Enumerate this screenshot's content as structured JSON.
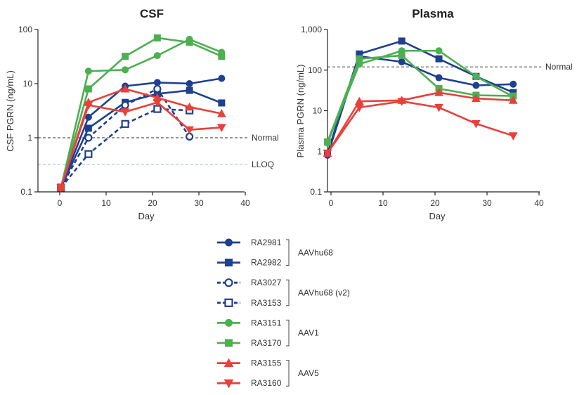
{
  "chart_data": [
    {
      "type": "line",
      "title": "CSF",
      "xlabel": "Day",
      "ylabel": "CSF PGRN (ng/mL)",
      "yscale": "log",
      "xlim": [
        -5,
        40
      ],
      "ylim": [
        0.1,
        100
      ],
      "xticks": [
        "0",
        "10",
        "20",
        "30",
        "40"
      ],
      "yticks": [
        "0.1",
        "1",
        "10",
        "100"
      ],
      "reference_lines": [
        {
          "label": "Normal",
          "y": 1.0,
          "color": "#555555"
        },
        {
          "label": "LLOQ",
          "y": 0.32,
          "color": "#b8c8d0"
        }
      ],
      "series": [
        {
          "name": "RA2981",
          "x": [
            0,
            6,
            14,
            21,
            28,
            35
          ],
          "y": [
            0.12,
            2.4,
            9.0,
            10.5,
            10.0,
            12.5
          ]
        },
        {
          "name": "RA2982",
          "x": [
            0,
            6,
            14,
            21,
            28,
            35
          ],
          "y": [
            0.12,
            1.5,
            4.5,
            6.5,
            7.5,
            4.4
          ]
        },
        {
          "name": "RA3027",
          "x": [
            0,
            6,
            14,
            21,
            28
          ],
          "y": [
            0.12,
            1.0,
            4.0,
            8.0,
            1.05
          ]
        },
        {
          "name": "RA3153",
          "x": [
            0,
            6,
            14,
            21,
            28
          ],
          "y": [
            0.12,
            0.5,
            1.8,
            3.4,
            3.2
          ]
        },
        {
          "name": "RA3151",
          "x": [
            0,
            6,
            14,
            21,
            28,
            35
          ],
          "y": [
            0.12,
            17.0,
            18.0,
            33.0,
            66.0,
            38.0
          ]
        },
        {
          "name": "RA3170",
          "x": [
            0,
            6,
            14,
            21,
            28,
            35
          ],
          "y": [
            0.12,
            8.0,
            32.0,
            70.0,
            58.0,
            32.0
          ]
        },
        {
          "name": "RA3155",
          "x": [
            0,
            6,
            14,
            21,
            28,
            35
          ],
          "y": [
            0.12,
            4.5,
            8.0,
            5.5,
            3.7,
            2.8
          ]
        },
        {
          "name": "RA3160",
          "x": [
            0,
            6,
            14,
            21,
            28,
            35
          ],
          "y": [
            0.12,
            4.0,
            3.0,
            4.5,
            1.4,
            1.55
          ]
        }
      ]
    },
    {
      "type": "line",
      "title": "Plasma",
      "xlabel": "Day",
      "ylabel": "Plasma PGRN (ng/mL)",
      "yscale": "log",
      "xlim": [
        0,
        40
      ],
      "ylim": [
        0.1,
        1000
      ],
      "xticks": [
        "0",
        "10",
        "20",
        "30",
        "40"
      ],
      "yticks": [
        "0.1",
        "1",
        "10",
        "100",
        "1,000"
      ],
      "reference_lines": [
        {
          "label": "Normal",
          "y": 120,
          "color": "#555555"
        }
      ],
      "series": [
        {
          "name": "RA2981",
          "x": [
            0,
            6,
            14,
            21,
            28,
            35
          ],
          "y": [
            0.8,
            220,
            160,
            65,
            42,
            45
          ]
        },
        {
          "name": "RA2982",
          "x": [
            0,
            6,
            14,
            21,
            28,
            35
          ],
          "y": [
            0.9,
            250,
            520,
            190,
            70,
            28
          ]
        },
        {
          "name": "RA3151",
          "x": [
            0,
            6,
            14,
            21,
            28,
            35
          ],
          "y": [
            1.6,
            140,
            300,
            300,
            70,
            22
          ]
        },
        {
          "name": "RA3170",
          "x": [
            0,
            6,
            14,
            21,
            28,
            35
          ],
          "y": [
            1.7,
            190,
            230,
            35,
            24,
            23
          ]
        },
        {
          "name": "RA3155",
          "x": [
            0,
            6,
            14,
            21,
            28,
            35
          ],
          "y": [
            0.9,
            17,
            18,
            28,
            20,
            18
          ]
        },
        {
          "name": "RA3160",
          "x": [
            0,
            6,
            14,
            21,
            28,
            35
          ],
          "y": [
            0.9,
            12,
            17,
            12,
            4.8,
            2.4
          ]
        }
      ]
    }
  ],
  "legend": {
    "entries": [
      {
        "name": "RA2981",
        "color": "#1f3f8f",
        "marker": "circle",
        "filled": true,
        "dashed": false
      },
      {
        "name": "RA2982",
        "color": "#1f3f8f",
        "marker": "square",
        "filled": true,
        "dashed": false
      },
      {
        "name": "RA3027",
        "color": "#1f3f8f",
        "marker": "circle",
        "filled": false,
        "dashed": true
      },
      {
        "name": "RA3153",
        "color": "#1f3f8f",
        "marker": "square",
        "filled": false,
        "dashed": true
      },
      {
        "name": "RA3151",
        "color": "#4caf50",
        "marker": "circle",
        "filled": true,
        "dashed": false
      },
      {
        "name": "RA3170",
        "color": "#4caf50",
        "marker": "square",
        "filled": true,
        "dashed": false
      },
      {
        "name": "RA3155",
        "color": "#e8403a",
        "marker": "triangle-up",
        "filled": true,
        "dashed": false
      },
      {
        "name": "RA3160",
        "color": "#e8403a",
        "marker": "triangle-down",
        "filled": true,
        "dashed": false
      }
    ],
    "groups": [
      {
        "label": "AAVhu68",
        "members": [
          "RA2981",
          "RA2982"
        ]
      },
      {
        "label": "AAVhu68 (v2)",
        "members": [
          "RA3027",
          "RA3153"
        ]
      },
      {
        "label": "AAV1",
        "members": [
          "RA3151",
          "RA3170"
        ]
      },
      {
        "label": "AAV5",
        "members": [
          "RA3155",
          "RA3160"
        ]
      }
    ]
  }
}
